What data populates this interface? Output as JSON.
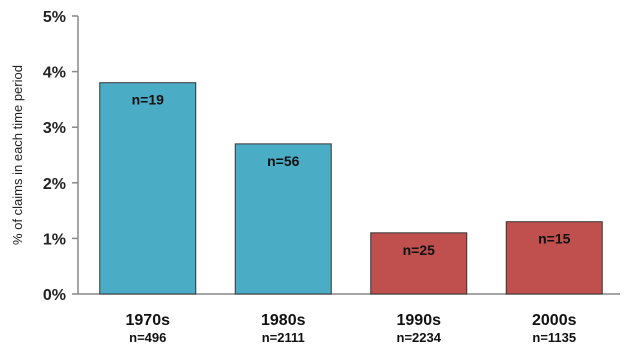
{
  "chart_data": {
    "type": "bar",
    "title": "",
    "xlabel": "",
    "ylabel": "% of claims in each time period",
    "ylim": [
      0,
      5
    ],
    "y_ticks": [
      0,
      1,
      2,
      3,
      4,
      5
    ],
    "y_tick_labels": [
      "0%",
      "1%",
      "2%",
      "3%",
      "4%",
      "5%"
    ],
    "categories": [
      "1970s",
      "1980s",
      "1990s",
      "2000s"
    ],
    "category_n": [
      "n=496",
      "n=2111",
      "n=2234",
      "n=1135"
    ],
    "values": [
      3.8,
      2.7,
      1.1,
      1.3
    ],
    "data_labels": [
      "n=19",
      "n=56",
      "n=25",
      "n=15"
    ],
    "bar_colors": [
      "#4bacc6",
      "#4bacc6",
      "#c0504d",
      "#c0504d"
    ],
    "grid": false,
    "legend": "none"
  }
}
